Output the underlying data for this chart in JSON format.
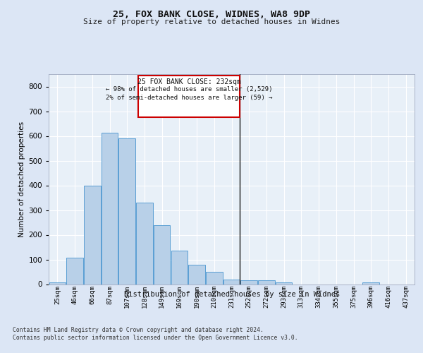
{
  "title1": "25, FOX BANK CLOSE, WIDNES, WA8 9DP",
  "title2": "Size of property relative to detached houses in Widnes",
  "xlabel": "Distribution of detached houses by size in Widnes",
  "ylabel": "Number of detached properties",
  "categories": [
    "25sqm",
    "46sqm",
    "66sqm",
    "87sqm",
    "107sqm",
    "128sqm",
    "149sqm",
    "169sqm",
    "190sqm",
    "210sqm",
    "231sqm",
    "252sqm",
    "272sqm",
    "293sqm",
    "313sqm",
    "334sqm",
    "355sqm",
    "375sqm",
    "396sqm",
    "416sqm",
    "437sqm"
  ],
  "values": [
    8,
    107,
    400,
    614,
    591,
    330,
    238,
    135,
    78,
    50,
    20,
    15,
    15,
    8,
    0,
    0,
    0,
    0,
    8,
    0,
    0
  ],
  "bar_color": "#b8d0e8",
  "bar_edge_color": "#5a9fd4",
  "annotation_lines": [
    "25 FOX BANK CLOSE: 232sqm",
    "← 98% of detached houses are smaller (2,529)",
    "2% of semi-detached houses are larger (59) →"
  ],
  "ylim": [
    0,
    850
  ],
  "yticks": [
    0,
    100,
    200,
    300,
    400,
    500,
    600,
    700,
    800
  ],
  "footer1": "Contains HM Land Registry data © Crown copyright and database right 2024.",
  "footer2": "Contains public sector information licensed under the Open Government Licence v3.0.",
  "bg_color": "#dce6f5",
  "plot_bg_color": "#e8f0f8"
}
